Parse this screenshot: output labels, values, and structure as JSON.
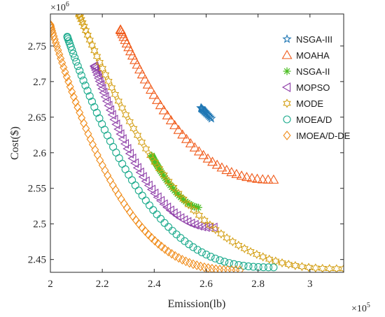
{
  "chart_data": {
    "type": "scatter",
    "title": "",
    "xlabel": "Emission(lb)",
    "ylabel": "Cost($)",
    "x_exponent": "×10",
    "x_exponent_power": "5",
    "y_exponent": "×10",
    "y_exponent_power": "6",
    "xlim": [
      2.0,
      3.13
    ],
    "ylim": [
      2.432,
      2.795
    ],
    "x_ticks": [
      2.0,
      2.2,
      2.4,
      2.6,
      2.8,
      3.0
    ],
    "x_tick_labels": [
      "2",
      "2.2",
      "2.4",
      "2.6",
      "2.8",
      "3"
    ],
    "y_ticks": [
      2.45,
      2.5,
      2.55,
      2.6,
      2.65,
      2.7,
      2.75
    ],
    "y_tick_labels": [
      "2.45",
      "2.5",
      "2.55",
      "2.6",
      "2.65",
      "2.7",
      "2.75"
    ],
    "grid": false,
    "legend_position": "top-right",
    "series": [
      {
        "name": "NSGA-III",
        "marker": "star",
        "color": "#1f77b4",
        "x_start": 2.58,
        "x_end": 2.62,
        "y_start": 2.663,
        "y_end": 2.648,
        "curvature": 0.0,
        "count": 14
      },
      {
        "name": "MOAHA",
        "marker": "triangle",
        "color": "#f05a1a",
        "x_start": 2.27,
        "x_end": 2.86,
        "y_start": 2.773,
        "y_end": 2.562,
        "curvature": 0.6,
        "count": 45
      },
      {
        "name": "NSGA-II",
        "marker": "asterisk",
        "color": "#4fbf26",
        "x_start": 2.39,
        "x_end": 2.57,
        "y_start": 2.596,
        "y_end": 2.523,
        "curvature": 0.3,
        "count": 40
      },
      {
        "name": "MOPSO",
        "marker": "triangle-left",
        "color": "#8e3ea8",
        "x_start": 2.17,
        "x_end": 2.63,
        "y_start": 2.722,
        "y_end": 2.495,
        "curvature": 0.55,
        "count": 50
      },
      {
        "name": "MODE",
        "marker": "hexagram",
        "color": "#d4a017",
        "x_start": 2.11,
        "x_end": 3.13,
        "y_start": 2.795,
        "y_end": 2.437,
        "curvature": 0.72,
        "count": 60
      },
      {
        "name": "MOEA/D",
        "marker": "circle",
        "color": "#1aaa8c",
        "x_start": 2.065,
        "x_end": 2.86,
        "y_start": 2.763,
        "y_end": 2.439,
        "curvature": 0.72,
        "count": 65
      },
      {
        "name": "IMOEA/D-DE",
        "marker": "diamond",
        "color": "#f08c1a",
        "x_start": 2.0,
        "x_end": 2.73,
        "y_start": 2.78,
        "y_end": 2.435,
        "curvature": 0.75,
        "count": 75
      }
    ]
  }
}
